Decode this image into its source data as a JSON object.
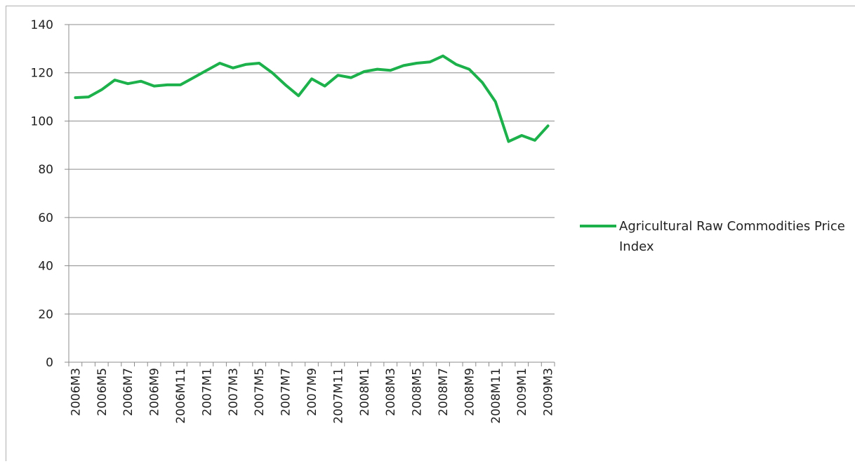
{
  "chart_data": {
    "type": "line",
    "categories": [
      "2006M3",
      null,
      "2006M5",
      null,
      "2006M7",
      null,
      "2006M9",
      null,
      "2006M11",
      null,
      "2007M1",
      null,
      "2007M3",
      null,
      "2007M5",
      null,
      "2007M7",
      null,
      "2007M9",
      null,
      "2007M11",
      null,
      "2008M1",
      null,
      "2008M3",
      null,
      "2008M5",
      null,
      "2008M7",
      null,
      "2008M9",
      null,
      "2008M11",
      null,
      "2009M1",
      null,
      "2009M3"
    ],
    "series": [
      {
        "name": "Agricultural Raw Commodities Price Index",
        "color": "#1db14b",
        "values": [
          109.7,
          110,
          113,
          117,
          115.5,
          116.5,
          114.5,
          115,
          115,
          118,
          121,
          124,
          122,
          123.5,
          124,
          120,
          115,
          110.5,
          117.5,
          114.5,
          119,
          118,
          120.5,
          121.5,
          121,
          123,
          124,
          124.5,
          127,
          123.5,
          121.5,
          116,
          108,
          91.5,
          94,
          92,
          98
        ]
      }
    ],
    "ylim": [
      0,
      140
    ],
    "yticks": [
      0,
      20,
      40,
      60,
      80,
      100,
      120,
      140
    ],
    "grid": true,
    "legend": "right"
  }
}
